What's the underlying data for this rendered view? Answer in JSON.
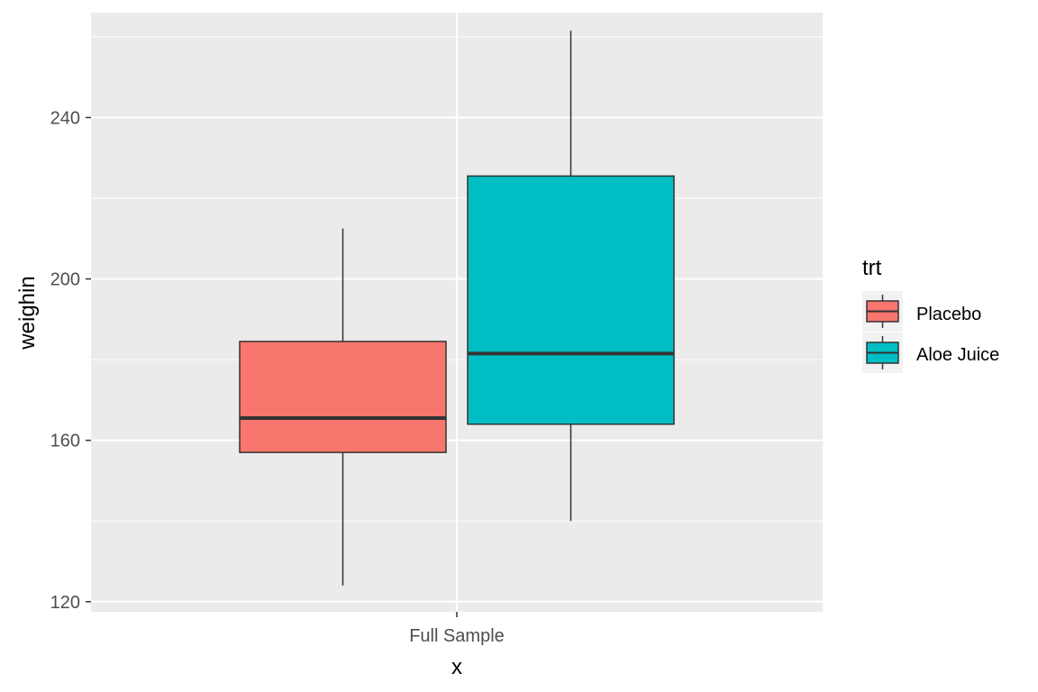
{
  "chart_data": {
    "type": "boxplot",
    "xlabel": "x",
    "ylabel": "weighin",
    "categories": [
      "Full Sample"
    ],
    "ylim": [
      117.5,
      266
    ],
    "yticks": [
      120,
      160,
      200,
      240
    ],
    "ytick_labels": [
      "120",
      "160",
      "200",
      "240"
    ],
    "grid": true,
    "legend": {
      "title": "trt",
      "position": "right",
      "entries": [
        "Placebo",
        "Aloe Juice"
      ]
    },
    "series": [
      {
        "name": "Placebo",
        "color": "#F8766D",
        "whisker_low": 124,
        "q1": 157,
        "median": 165.5,
        "q3": 184.5,
        "whisker_high": 212.5
      },
      {
        "name": "Aloe Juice",
        "color": "#00BFC4",
        "whisker_low": 140,
        "q1": 164,
        "median": 181.5,
        "q3": 225.5,
        "whisker_high": 261.5
      }
    ]
  }
}
